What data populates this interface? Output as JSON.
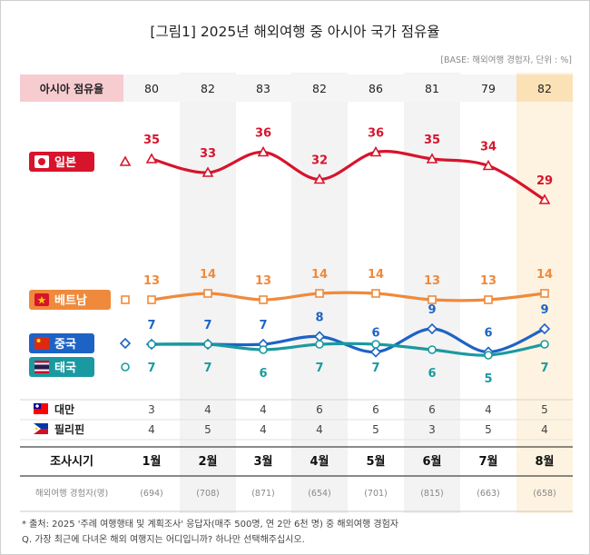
{
  "chart_data": {
    "type": "line",
    "title": "[그림1] 2025년 해외여행 중 아시아 국가 점유율",
    "base_note": "[BASE: 해외여행 경험자, 단위 : %]",
    "categories": [
      "1월",
      "2월",
      "3월",
      "4월",
      "5월",
      "6월",
      "7월",
      "8월"
    ],
    "x_header": "조사시기",
    "asia_share": {
      "label": "아시아 점유율",
      "values": [
        80,
        82,
        83,
        82,
        86,
        81,
        79,
        82
      ]
    },
    "series": [
      {
        "name": "일본",
        "color": "#d7142c",
        "marker": "triangle",
        "values": [
          35,
          33,
          36,
          32,
          36,
          35,
          34,
          29
        ]
      },
      {
        "name": "베트남",
        "color": "#ef8a3c",
        "marker": "square",
        "values": [
          13,
          14,
          13,
          14,
          14,
          13,
          13,
          14
        ]
      },
      {
        "name": "중국",
        "color": "#1d63c6",
        "marker": "diamond",
        "values": [
          7,
          7,
          7,
          8,
          6,
          9,
          6,
          9
        ]
      },
      {
        "name": "태국",
        "color": "#1a9aa0",
        "marker": "circle",
        "values": [
          7,
          7,
          6,
          7,
          7,
          6,
          5,
          7
        ]
      }
    ],
    "table_rows": [
      {
        "name": "대만",
        "values": [
          3,
          4,
          4,
          6,
          6,
          6,
          4,
          5
        ]
      },
      {
        "name": "필리핀",
        "values": [
          4,
          5,
          4,
          4,
          5,
          3,
          5,
          4
        ]
      }
    ],
    "sample_row": {
      "label": "해외여행 경험자(명)",
      "values": [
        "(694)",
        "(708)",
        "(871)",
        "(654)",
        "(701)",
        "(815)",
        "(663)",
        "(658)"
      ]
    },
    "footnotes": [
      "* 출처: 2025 '주례 여행행태 및 계획조사' 응답자(매주 500명, 연 2만 6천 명) 중 해외여행 경험자",
      "Q. 가장 최근에 다녀온 해외 여행지는 어디입니까? 하나만 선택해주십시오."
    ]
  }
}
